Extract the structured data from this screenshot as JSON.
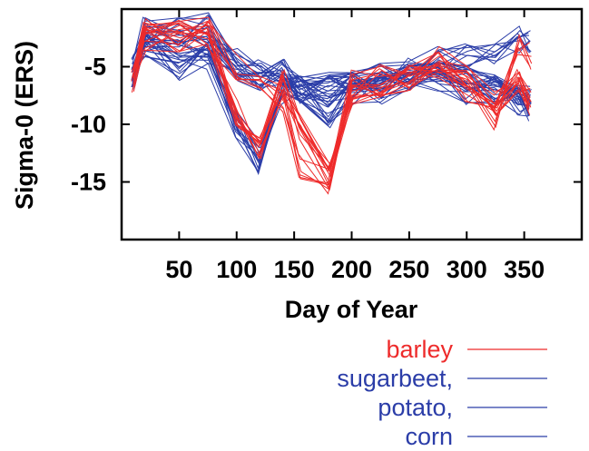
{
  "chart_data": {
    "type": "line",
    "xlabel": "Day of Year",
    "ylabel": "Sigma-0 (ERS)",
    "xlim": [
      0,
      400
    ],
    "ylim": [
      -20,
      0
    ],
    "xticks": [
      50,
      100,
      150,
      200,
      250,
      300,
      350
    ],
    "yticks": [
      -5,
      -10,
      -15
    ],
    "grid": false,
    "legend_position": "bottom-right",
    "colors": {
      "barley": "#ee2b2b",
      "other": "#2b3da8"
    },
    "x": [
      10,
      20,
      50,
      75,
      100,
      120,
      140,
      155,
      180,
      200,
      225,
      250,
      275,
      300,
      325,
      345,
      355
    ],
    "series": [
      {
        "name": "barley",
        "color": "#ee2b2b",
        "groups": [
          {
            "count": 12,
            "values": [
              -6.5,
              -2.5,
              -2.5,
              -2.2,
              -9.0,
              -12.0,
              -6.5,
              -10.5,
              -14.5,
              -7.0,
              -6.5,
              -6.0,
              -4.5,
              -6.0,
              -8.0,
              -6.5,
              -8.0
            ]
          },
          {
            "count": 6,
            "values": [
              -6.0,
              -2.0,
              -2.0,
              -2.0,
              -5.0,
              -6.5,
              -8.0,
              -13.5,
              -15.0,
              -6.5,
              -6.0,
              -5.5,
              -5.0,
              -7.0,
              -9.5,
              -3.5,
              -4.0
            ]
          }
        ]
      },
      {
        "name": "sugarbeet,",
        "color": "#2b3da8",
        "groups": [
          {
            "count": 14,
            "values": [
              -5.5,
              -3.0,
              -5.0,
              -4.0,
              -10.0,
              -13.0,
              -7.0,
              -7.0,
              -9.0,
              -7.0,
              -7.0,
              -6.0,
              -5.5,
              -6.0,
              -7.0,
              -8.0,
              -8.5
            ]
          }
        ]
      },
      {
        "name": "potato,",
        "color": "#2b3da8",
        "groups": [
          {
            "count": 12,
            "values": [
              -6.0,
              -2.0,
              -2.0,
              -1.5,
              -5.0,
              -6.0,
              -5.5,
              -7.0,
              -6.5,
              -6.0,
              -6.5,
              -6.0,
              -6.0,
              -7.0,
              -7.0,
              -7.5,
              -8.0
            ]
          }
        ]
      },
      {
        "name": "corn",
        "color": "#2b3da8",
        "groups": [
          {
            "count": 10,
            "values": [
              -5.0,
              -2.5,
              -3.0,
              -3.5,
              -4.5,
              -5.5,
              -6.5,
              -7.0,
              -7.0,
              -6.5,
              -6.0,
              -5.5,
              -4.5,
              -4.0,
              -3.5,
              -2.5,
              -2.5
            ]
          }
        ]
      }
    ],
    "legend": [
      {
        "label": "barley",
        "color": "#ee2b2b"
      },
      {
        "label": "sugarbeet,",
        "color": "#2b3da8"
      },
      {
        "label": "potato,",
        "color": "#2b3da8"
      },
      {
        "label": "corn",
        "color": "#2b3da8"
      }
    ]
  }
}
